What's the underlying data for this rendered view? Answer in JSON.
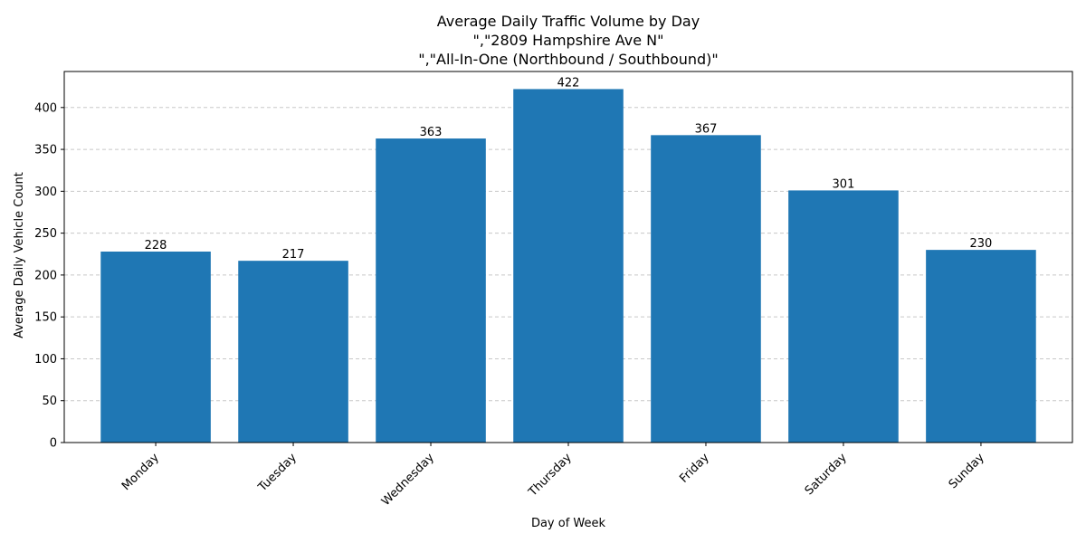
{
  "chart_data": {
    "type": "bar",
    "title": "Average Daily Traffic Volume by Day",
    "subtitle_lines": [
      "\",\"2809 Hampshire Ave N\"",
      "\",\"All-In-One (Northbound / Southbound)\""
    ],
    "xlabel": "Day of Week",
    "ylabel": "Average Daily Vehicle Count",
    "categories": [
      "Monday",
      "Tuesday",
      "Wednesday",
      "Thursday",
      "Friday",
      "Saturday",
      "Sunday"
    ],
    "values": [
      228,
      217,
      363,
      422,
      367,
      301,
      230
    ],
    "ylim": [
      0,
      443
    ],
    "yticks": [
      0,
      50,
      100,
      150,
      200,
      250,
      300,
      350,
      400
    ],
    "grid": "y-dashed",
    "bar_color": "#1f77b4",
    "grid_color": "#c8c8c8"
  }
}
